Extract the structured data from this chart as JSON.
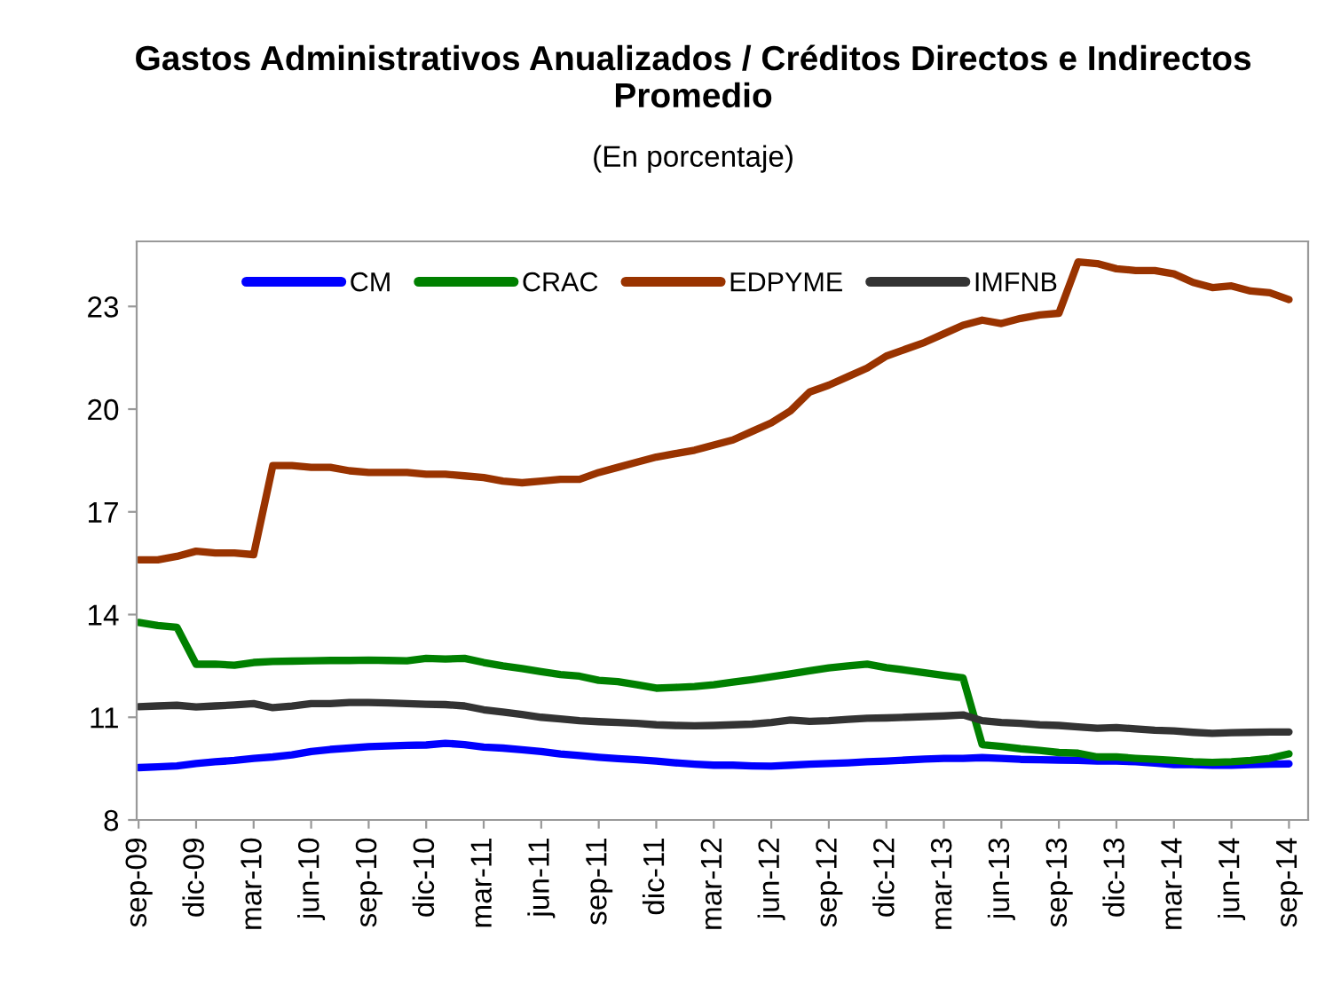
{
  "chart_data": {
    "type": "line",
    "title": "Gastos Administrativos Anualizados / Créditos Directos e Indirectos Promedio",
    "subtitle": "(En porcentaje)",
    "categories": [
      "sep-09",
      null,
      null,
      "dic-09",
      null,
      null,
      "mar-10",
      null,
      null,
      "jun-10",
      null,
      null,
      "sep-10",
      null,
      null,
      "dic-10",
      null,
      null,
      "mar-11",
      null,
      null,
      "jun-11",
      null,
      null,
      "sep-11",
      null,
      null,
      "dic-11",
      null,
      null,
      "mar-12",
      null,
      null,
      "jun-12",
      null,
      null,
      "sep-12",
      null,
      null,
      "dic-12",
      null,
      null,
      "mar-13",
      null,
      null,
      "jun-13",
      null,
      null,
      "sep-13",
      null,
      null,
      "dic-13",
      null,
      null,
      "mar-14",
      null,
      null,
      "jun-14",
      null,
      null,
      "sep-14"
    ],
    "series": [
      {
        "name": "CM",
        "color": "#0000ff",
        "values": [
          9.53,
          9.55,
          9.58,
          9.65,
          9.7,
          9.74,
          9.8,
          9.84,
          9.9,
          10.0,
          10.06,
          10.1,
          10.14,
          10.16,
          10.18,
          10.19,
          10.24,
          10.2,
          10.13,
          10.1,
          10.05,
          10.0,
          9.93,
          9.88,
          9.83,
          9.79,
          9.76,
          9.72,
          9.67,
          9.63,
          9.6,
          9.6,
          9.58,
          9.57,
          9.6,
          9.63,
          9.65,
          9.67,
          9.7,
          9.72,
          9.75,
          9.78,
          9.8,
          9.8,
          9.82,
          9.8,
          9.77,
          9.76,
          9.75,
          9.74,
          9.72,
          9.72,
          9.7,
          9.66,
          9.62,
          9.62,
          9.6,
          9.6,
          9.62,
          9.63,
          9.64
        ]
      },
      {
        "name": "CRAC",
        "color": "#008000",
        "values": [
          13.77,
          13.68,
          13.63,
          12.55,
          12.55,
          12.52,
          12.6,
          12.63,
          12.64,
          12.65,
          12.66,
          12.66,
          12.67,
          12.66,
          12.65,
          12.72,
          12.7,
          12.72,
          12.6,
          12.5,
          12.42,
          12.33,
          12.25,
          12.2,
          12.08,
          12.04,
          11.95,
          11.85,
          11.87,
          11.9,
          11.95,
          12.03,
          12.1,
          12.18,
          12.27,
          12.36,
          12.44,
          12.5,
          12.55,
          12.45,
          12.38,
          12.3,
          12.22,
          12.15,
          10.2,
          10.15,
          10.08,
          10.03,
          9.97,
          9.95,
          9.84,
          9.84,
          9.8,
          9.77,
          9.74,
          9.7,
          9.68,
          9.7,
          9.74,
          9.8,
          9.93
        ]
      },
      {
        "name": "EDPYME",
        "color": "#993300",
        "values": [
          15.6,
          15.6,
          15.7,
          15.85,
          15.8,
          15.8,
          15.75,
          18.35,
          18.35,
          18.3,
          18.3,
          18.2,
          18.15,
          18.15,
          18.15,
          18.1,
          18.1,
          18.05,
          18.0,
          17.9,
          17.85,
          17.9,
          17.95,
          17.95,
          18.15,
          18.3,
          18.45,
          18.6,
          18.7,
          18.8,
          18.95,
          19.1,
          19.35,
          19.6,
          19.95,
          20.5,
          20.7,
          20.95,
          21.2,
          21.55,
          21.75,
          21.95,
          22.2,
          22.45,
          22.6,
          22.5,
          22.65,
          22.75,
          22.8,
          24.3,
          24.25,
          24.1,
          24.05,
          24.05,
          23.95,
          23.7,
          23.55,
          23.6,
          23.45,
          23.4,
          23.2
        ]
      },
      {
        "name": "IMFNB",
        "color": "#333333",
        "values": [
          11.31,
          11.33,
          11.35,
          11.3,
          11.33,
          11.36,
          11.4,
          11.28,
          11.33,
          11.4,
          11.4,
          11.43,
          11.43,
          11.42,
          11.4,
          11.38,
          11.37,
          11.33,
          11.22,
          11.15,
          11.08,
          11.0,
          10.95,
          10.9,
          10.87,
          10.85,
          10.82,
          10.78,
          10.76,
          10.75,
          10.76,
          10.78,
          10.8,
          10.85,
          10.92,
          10.88,
          10.9,
          10.94,
          10.97,
          10.98,
          11.0,
          11.02,
          11.04,
          11.07,
          10.9,
          10.85,
          10.82,
          10.78,
          10.76,
          10.72,
          10.68,
          10.7,
          10.66,
          10.62,
          10.6,
          10.56,
          10.53,
          10.55,
          10.56,
          10.57,
          10.57
        ]
      }
    ],
    "ylim": [
      8,
      24.9
    ],
    "yticks": [
      8,
      11,
      14,
      17,
      20,
      23
    ],
    "grid": false,
    "legend": "top",
    "marker": "none",
    "line_style": "solid"
  }
}
